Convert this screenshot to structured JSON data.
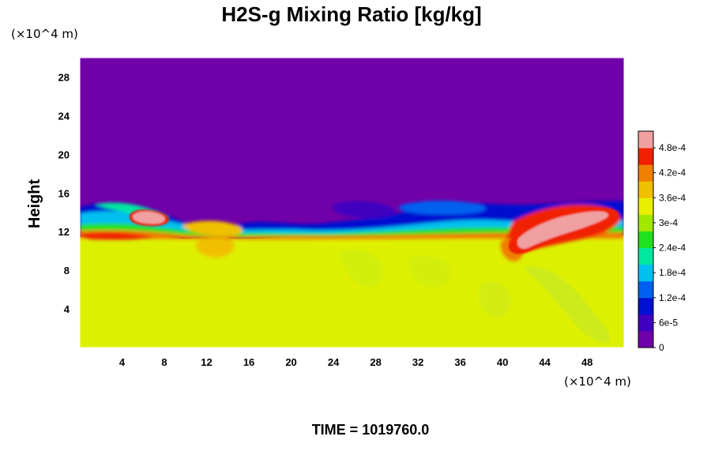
{
  "chart_data": {
    "type": "heatmap",
    "title": "H2S-g Mixing Ratio [kg/kg]",
    "ylabel": "Height",
    "xlabel": "",
    "x_unit": "(×10^4 m)",
    "y_unit": "(×10^4 m)",
    "xlim": [
      0,
      51.5
    ],
    "ylim": [
      0,
      30
    ],
    "x_ticks": [
      4,
      8,
      12,
      16,
      20,
      24,
      28,
      32,
      36,
      40,
      44,
      48
    ],
    "y_ticks": [
      4,
      8,
      12,
      16,
      20,
      24,
      28
    ],
    "grid": false,
    "colorbar": {
      "min": 0,
      "max": 0.00052,
      "tick_values": [
        0,
        6e-05,
        0.00012,
        0.00018,
        0.00024,
        0.0003,
        0.00036,
        0.00042,
        0.00048
      ],
      "tick_labels": [
        "0",
        "6e-5",
        "1.2e-4",
        "1.8e-4",
        "2.4e-4",
        "3e-4",
        "3.6e-4",
        "4.2e-4",
        "4.8e-4"
      ],
      "colors": [
        "#7000a8",
        "#4000c0",
        "#0010d0",
        "#0060f0",
        "#00c0f0",
        "#00e8a0",
        "#20e020",
        "#a0e800",
        "#e8f000",
        "#f0c000",
        "#f08000",
        "#f02000",
        "#f0a0a0"
      ]
    },
    "regions": {
      "lower_layer": {
        "description_value": 0.00037,
        "height_range": [
          0,
          11.5
        ]
      },
      "upper_layer": {
        "description_value": 0,
        "height_range": [
          15,
          30
        ]
      },
      "interface_value_range": [
        6e-05,
        0.00052
      ],
      "plumes": [
        {
          "x_range": [
            5,
            8.5
          ],
          "height_range": [
            12.5,
            13.7
          ],
          "value": 0.0005
        },
        {
          "x_range": [
            39.5,
            49
          ],
          "height_range": [
            9.5,
            14.4
          ],
          "value": 0.0005
        }
      ]
    },
    "time_label": "TIME = 1019760.0"
  }
}
